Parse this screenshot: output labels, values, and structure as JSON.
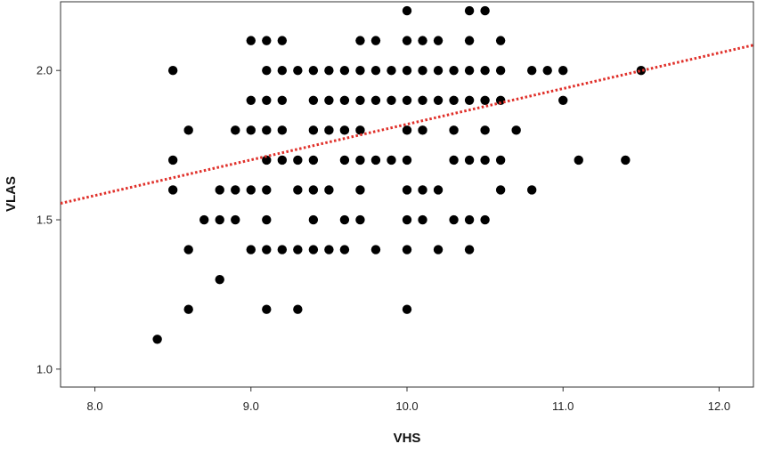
{
  "chart_data": {
    "type": "scatter",
    "title": "",
    "xlabel": "VHS",
    "ylabel": "VLAS",
    "xlim": [
      7.78,
      12.22
    ],
    "ylim": [
      0.94,
      2.23
    ],
    "x_ticks": [
      8.0,
      9.0,
      10.0,
      11.0,
      12.0
    ],
    "x_tick_labels": [
      "8.0",
      "9.0",
      "10.0",
      "11.0",
      "12.0"
    ],
    "y_ticks": [
      1.0,
      1.5,
      2.0
    ],
    "y_tick_labels": [
      "1.0",
      "1.5",
      "2.0"
    ],
    "grid": false,
    "legend": "none",
    "colors": {
      "points": "#000000",
      "trendline": "#e0302a",
      "axis": "#333333"
    },
    "trendline": {
      "style": "dotted",
      "x": [
        7.78,
        12.22
      ],
      "y": [
        1.555,
        2.085
      ]
    },
    "points": [
      [
        8.4,
        1.1
      ],
      [
        8.5,
        2.0
      ],
      [
        8.5,
        1.7
      ],
      [
        8.5,
        1.6
      ],
      [
        8.6,
        1.8
      ],
      [
        8.6,
        1.4
      ],
      [
        8.6,
        1.2
      ],
      [
        8.7,
        1.5
      ],
      [
        8.8,
        1.6
      ],
      [
        8.8,
        1.5
      ],
      [
        8.8,
        1.3
      ],
      [
        8.9,
        1.8
      ],
      [
        8.9,
        1.6
      ],
      [
        8.9,
        1.5
      ],
      [
        9.0,
        2.1
      ],
      [
        9.0,
        1.9
      ],
      [
        9.0,
        1.8
      ],
      [
        9.0,
        1.6
      ],
      [
        9.0,
        1.4
      ],
      [
        9.1,
        2.1
      ],
      [
        9.1,
        2.0
      ],
      [
        9.1,
        1.9
      ],
      [
        9.1,
        1.8
      ],
      [
        9.1,
        1.7
      ],
      [
        9.1,
        1.6
      ],
      [
        9.1,
        1.5
      ],
      [
        9.1,
        1.4
      ],
      [
        9.1,
        1.2
      ],
      [
        9.2,
        2.1
      ],
      [
        9.2,
        2.0
      ],
      [
        9.2,
        1.9
      ],
      [
        9.2,
        1.8
      ],
      [
        9.2,
        1.7
      ],
      [
        9.2,
        1.4
      ],
      [
        9.3,
        2.0
      ],
      [
        9.3,
        1.7
      ],
      [
        9.3,
        1.6
      ],
      [
        9.3,
        1.4
      ],
      [
        9.3,
        1.2
      ],
      [
        9.4,
        2.0
      ],
      [
        9.4,
        1.9
      ],
      [
        9.4,
        1.8
      ],
      [
        9.4,
        1.7
      ],
      [
        9.4,
        1.6
      ],
      [
        9.4,
        1.5
      ],
      [
        9.4,
        1.4
      ],
      [
        9.5,
        2.0
      ],
      [
        9.5,
        1.9
      ],
      [
        9.5,
        1.8
      ],
      [
        9.5,
        1.6
      ],
      [
        9.5,
        1.4
      ],
      [
        9.6,
        2.0
      ],
      [
        9.6,
        1.9
      ],
      [
        9.6,
        1.8
      ],
      [
        9.6,
        1.7
      ],
      [
        9.6,
        1.5
      ],
      [
        9.6,
        1.4
      ],
      [
        9.7,
        2.1
      ],
      [
        9.7,
        2.0
      ],
      [
        9.7,
        1.9
      ],
      [
        9.7,
        1.8
      ],
      [
        9.7,
        1.7
      ],
      [
        9.7,
        1.6
      ],
      [
        9.7,
        1.5
      ],
      [
        9.8,
        2.1
      ],
      [
        9.8,
        2.0
      ],
      [
        9.8,
        1.9
      ],
      [
        9.8,
        1.7
      ],
      [
        9.8,
        1.4
      ],
      [
        9.9,
        2.0
      ],
      [
        9.9,
        1.9
      ],
      [
        9.9,
        1.7
      ],
      [
        10.0,
        2.2
      ],
      [
        10.0,
        2.1
      ],
      [
        10.0,
        2.0
      ],
      [
        10.0,
        1.9
      ],
      [
        10.0,
        1.8
      ],
      [
        10.0,
        1.7
      ],
      [
        10.0,
        1.6
      ],
      [
        10.0,
        1.5
      ],
      [
        10.0,
        1.4
      ],
      [
        10.0,
        1.2
      ],
      [
        10.1,
        2.1
      ],
      [
        10.1,
        2.0
      ],
      [
        10.1,
        1.9
      ],
      [
        10.1,
        1.8
      ],
      [
        10.1,
        1.6
      ],
      [
        10.1,
        1.5
      ],
      [
        10.2,
        2.1
      ],
      [
        10.2,
        2.0
      ],
      [
        10.2,
        1.9
      ],
      [
        10.2,
        1.6
      ],
      [
        10.2,
        1.4
      ],
      [
        10.3,
        2.0
      ],
      [
        10.3,
        1.9
      ],
      [
        10.3,
        1.8
      ],
      [
        10.3,
        1.7
      ],
      [
        10.3,
        1.5
      ],
      [
        10.4,
        2.2
      ],
      [
        10.4,
        2.1
      ],
      [
        10.4,
        2.0
      ],
      [
        10.4,
        1.9
      ],
      [
        10.4,
        1.7
      ],
      [
        10.4,
        1.5
      ],
      [
        10.4,
        1.4
      ],
      [
        10.5,
        2.2
      ],
      [
        10.5,
        2.0
      ],
      [
        10.5,
        1.9
      ],
      [
        10.5,
        1.8
      ],
      [
        10.5,
        1.7
      ],
      [
        10.5,
        1.5
      ],
      [
        10.6,
        2.1
      ],
      [
        10.6,
        2.0
      ],
      [
        10.6,
        1.9
      ],
      [
        10.6,
        1.7
      ],
      [
        10.6,
        1.6
      ],
      [
        10.7,
        1.8
      ],
      [
        10.8,
        2.0
      ],
      [
        10.8,
        1.6
      ],
      [
        10.9,
        2.0
      ],
      [
        11.0,
        2.0
      ],
      [
        11.0,
        1.9
      ],
      [
        11.1,
        1.7
      ],
      [
        11.4,
        1.7
      ],
      [
        11.5,
        2.0
      ]
    ]
  }
}
